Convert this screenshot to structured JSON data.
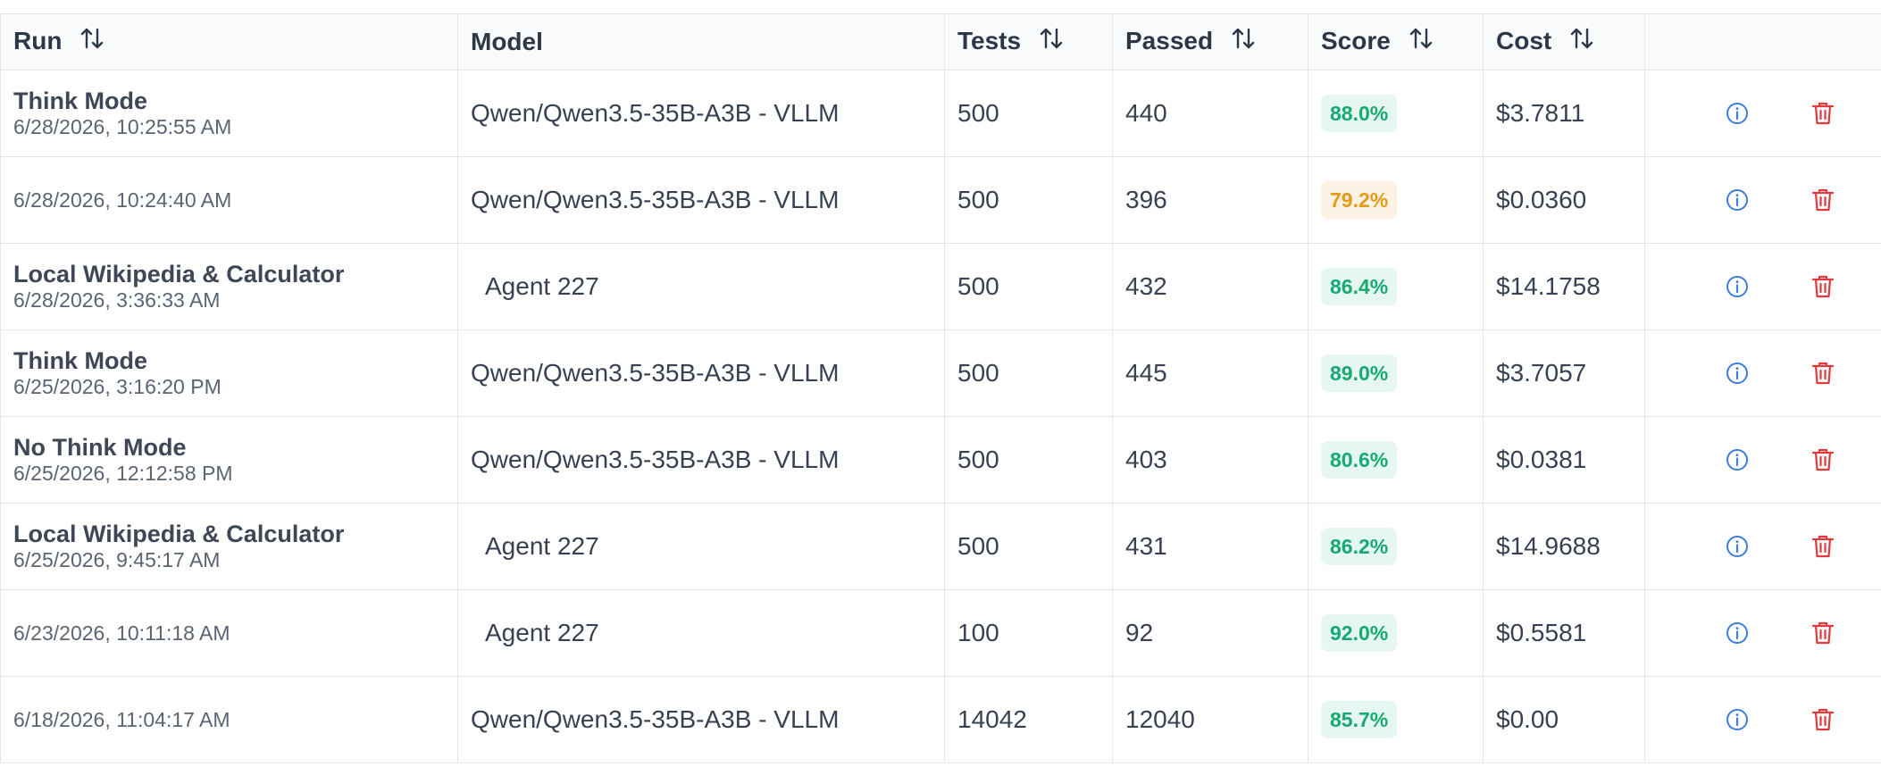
{
  "colors": {
    "score_green_text": "#16a974",
    "score_green_bg": "#e6f7ef",
    "score_amber_text": "#e69a18",
    "score_amber_bg": "#fdf3e4",
    "info_icon": "#3b7ddd",
    "delete_icon": "#e0393e"
  },
  "table": {
    "headers": {
      "run": "Run",
      "model": "Model",
      "tests": "Tests",
      "passed": "Passed",
      "score": "Score",
      "cost": "Cost",
      "actions": ""
    },
    "sortable_columns": [
      "run",
      "tests",
      "passed",
      "score",
      "cost"
    ],
    "sort_icon": "sort-arrows-icon",
    "row_icons": [
      "info-icon",
      "trash-icon"
    ],
    "rows": [
      {
        "name": "Think Mode",
        "date": "6/28/2026, 10:25:55 AM",
        "model": "Qwen/Qwen3.5-35B-A3B - VLLM",
        "tests": "500",
        "passed": "440",
        "score": "88.0%",
        "score_status": "green",
        "cost": "$3.7811"
      },
      {
        "name": "",
        "date": "6/28/2026, 10:24:40 AM",
        "model": "Qwen/Qwen3.5-35B-A3B - VLLM",
        "tests": "500",
        "passed": "396",
        "score": "79.2%",
        "score_status": "amber",
        "cost": "$0.0360"
      },
      {
        "name": "Local Wikipedia & Calculator",
        "date": "6/28/2026, 3:36:33 AM",
        "model": "Agent 227",
        "tests": "500",
        "passed": "432",
        "score": "86.4%",
        "score_status": "green",
        "cost": "$14.1758"
      },
      {
        "name": "Think Mode",
        "date": "6/25/2026, 3:16:20 PM",
        "model": "Qwen/Qwen3.5-35B-A3B - VLLM",
        "tests": "500",
        "passed": "445",
        "score": "89.0%",
        "score_status": "green",
        "cost": "$3.7057"
      },
      {
        "name": "No Think Mode",
        "date": "6/25/2026, 12:12:58 PM",
        "model": "Qwen/Qwen3.5-35B-A3B - VLLM",
        "tests": "500",
        "passed": "403",
        "score": "80.6%",
        "score_status": "green",
        "cost": "$0.0381"
      },
      {
        "name": "Local Wikipedia & Calculator",
        "date": "6/25/2026, 9:45:17 AM",
        "model": "Agent 227",
        "tests": "500",
        "passed": "431",
        "score": "86.2%",
        "score_status": "green",
        "cost": "$14.9688"
      },
      {
        "name": "",
        "date": "6/23/2026, 10:11:18 AM",
        "model": "Agent 227",
        "tests": "100",
        "passed": "92",
        "score": "92.0%",
        "score_status": "green",
        "cost": "$0.5581"
      },
      {
        "name": "",
        "date": "6/18/2026, 11:04:17 AM",
        "model": "Qwen/Qwen3.5-35B-A3B - VLLM",
        "tests": "14042",
        "passed": "12040",
        "score": "85.7%",
        "score_status": "green",
        "cost": "$0.00"
      }
    ]
  }
}
